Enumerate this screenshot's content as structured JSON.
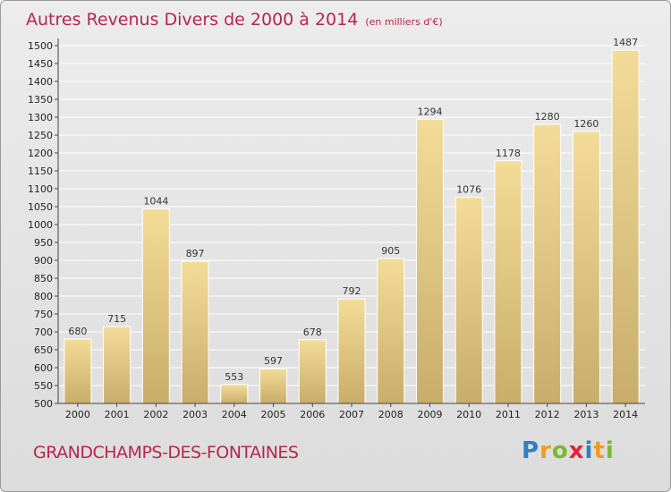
{
  "header": {
    "title": "Autres Revenus Divers de 2000 à 2014",
    "unit": "(en milliers d'€)"
  },
  "footer": {
    "place": "GRANDCHAMPS-DES-FONTAINES",
    "logo_text": "Proxiti",
    "logo_letters": [
      {
        "ch": "P",
        "color": "#2e7fc1"
      },
      {
        "ch": "r",
        "color": "#f39b1d"
      },
      {
        "ch": "o",
        "color": "#7cb82f"
      },
      {
        "ch": "x",
        "color": "#e5223a"
      },
      {
        "ch": "i",
        "color": "#2e7fc1"
      },
      {
        "ch": "t",
        "color": "#f39b1d"
      },
      {
        "ch": "i",
        "color": "#7cb82f"
      }
    ]
  },
  "chart_data": {
    "type": "bar",
    "title": "Autres Revenus Divers de 2000 à 2014",
    "subtitle": "(en milliers d'€)",
    "categories": [
      "2000",
      "2001",
      "2002",
      "2003",
      "2004",
      "2005",
      "2006",
      "2007",
      "2008",
      "2009",
      "2010",
      "2011",
      "2012",
      "2013",
      "2014"
    ],
    "values": [
      680,
      715,
      1044,
      897,
      553,
      597,
      678,
      792,
      905,
      1294,
      1076,
      1178,
      1280,
      1260,
      1487
    ],
    "ylim": [
      500,
      1500
    ],
    "ytick_step": 50,
    "grid": true,
    "bar_color_top": "#f3dc98",
    "bar_color_bottom": "#c9ad6a"
  }
}
